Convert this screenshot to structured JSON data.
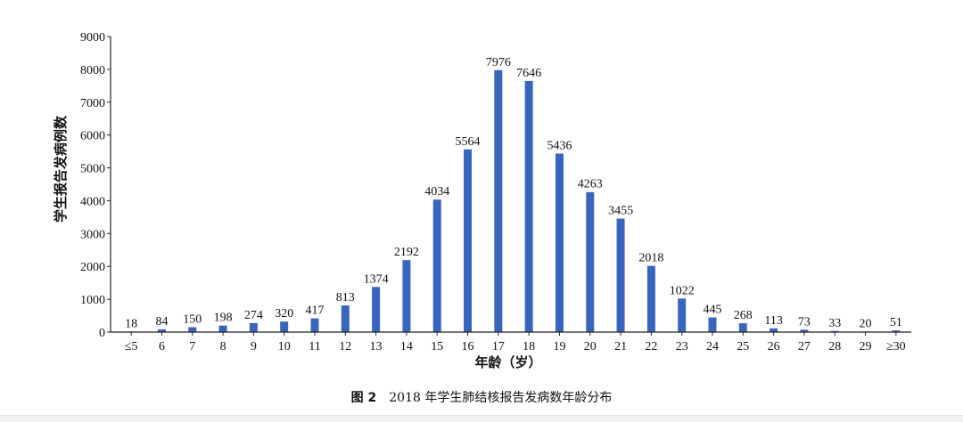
{
  "chart_data": {
    "type": "bar",
    "categories": [
      "≤5",
      "6",
      "7",
      "8",
      "9",
      "10",
      "11",
      "12",
      "13",
      "14",
      "15",
      "16",
      "17",
      "18",
      "19",
      "20",
      "21",
      "22",
      "23",
      "24",
      "25",
      "26",
      "27",
      "28",
      "29",
      "≥30"
    ],
    "values": [
      18,
      84,
      150,
      198,
      274,
      320,
      417,
      813,
      1374,
      2192,
      4034,
      5564,
      7976,
      7646,
      5436,
      4263,
      3455,
      2018,
      1022,
      445,
      268,
      113,
      73,
      33,
      20,
      51
    ],
    "value_labels": [
      "18",
      "84",
      "150",
      "198",
      "274",
      "320",
      "417",
      "813",
      "1374",
      "2192",
      "4034",
      "5564",
      "7976",
      "7646",
      "5436",
      "4263",
      "3455",
      "2018",
      "1022",
      "445",
      "268",
      "113",
      "73",
      "33",
      "20",
      "51"
    ],
    "xlabel": "年龄（岁）",
    "ylabel": "学生报告发病例数",
    "ylim": [
      0,
      9000
    ],
    "yticks": [
      0,
      1000,
      2000,
      3000,
      4000,
      5000,
      6000,
      7000,
      8000,
      9000
    ],
    "ytick_labels": [
      "0",
      "1000",
      "2000",
      "3000",
      "4000",
      "5000",
      "6000",
      "7000",
      "8000",
      "9000"
    ],
    "bar_color": "#3a65bf",
    "grid": false
  },
  "caption": {
    "label": "图 2",
    "text": "2018 年学生肺结核报告发病数年龄分布"
  }
}
